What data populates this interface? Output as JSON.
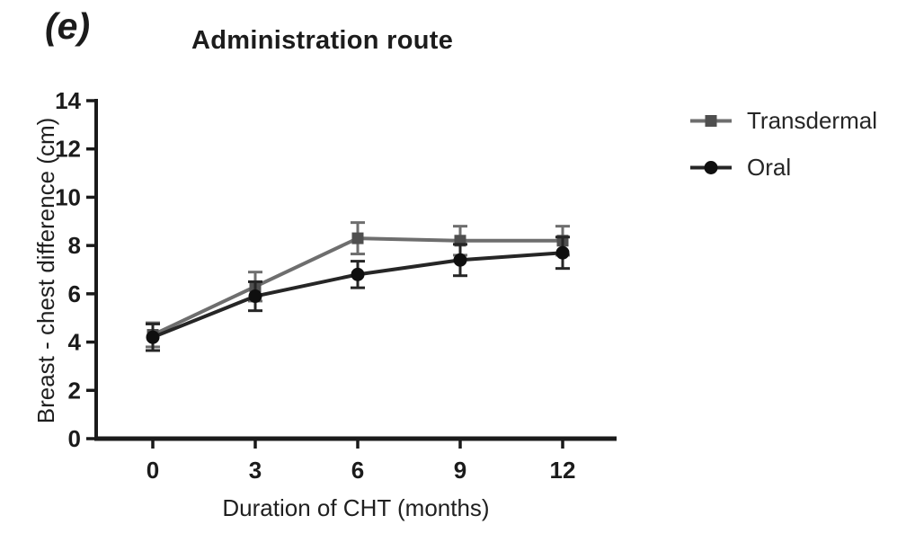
{
  "panel_label": "(e)",
  "title": "Administration route",
  "legend": {
    "items": [
      {
        "label": "Transdermal",
        "marker": "square",
        "line_color": "#6e6e6e",
        "marker_color": "#4f4f4f"
      },
      {
        "label": "Oral",
        "marker": "circle",
        "line_color": "#262626",
        "marker_color": "#0f0f0f"
      }
    ]
  },
  "chart_data": {
    "type": "line",
    "title": "Administration route",
    "xlabel": "Duration of CHT (months)",
    "ylabel": "Breast - chest difference (cm)",
    "x": [
      0,
      3,
      6,
      9,
      12
    ],
    "xticks": [
      0,
      3,
      6,
      9,
      12
    ],
    "yticks": [
      0,
      2,
      4,
      6,
      8,
      10,
      12,
      14
    ],
    "xlim": [
      0,
      12
    ],
    "ylim": [
      0,
      14
    ],
    "grid": false,
    "legend_position": "right",
    "axis_color": "#1a1a1a",
    "text_color": "#1b1b1b",
    "series": [
      {
        "name": "Transdermal",
        "marker": "square",
        "line_color": "#6e6e6e",
        "marker_color": "#4f4f4f",
        "values": [
          4.3,
          6.3,
          8.3,
          8.2,
          8.2
        ],
        "error": [
          0.5,
          0.6,
          0.65,
          0.6,
          0.6
        ]
      },
      {
        "name": "Oral",
        "marker": "circle",
        "line_color": "#262626",
        "marker_color": "#0f0f0f",
        "values": [
          4.2,
          5.9,
          6.8,
          7.4,
          7.7
        ],
        "error": [
          0.55,
          0.6,
          0.55,
          0.65,
          0.65
        ]
      }
    ]
  }
}
